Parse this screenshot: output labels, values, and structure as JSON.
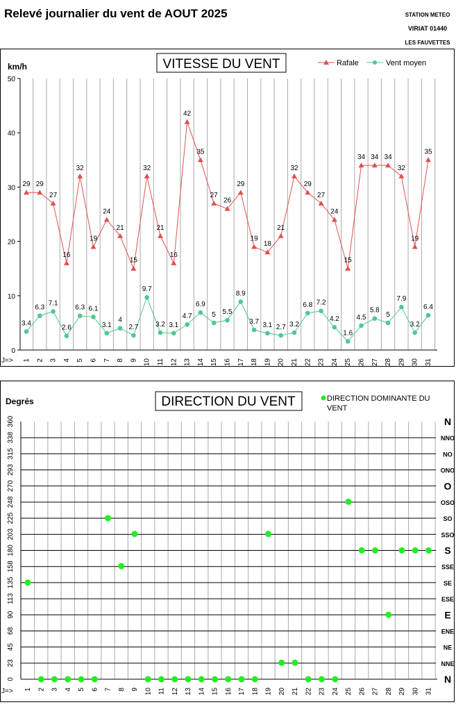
{
  "page": {
    "title": "Relevé journalier du vent de AOUT 2025",
    "logo": {
      "line1": "STATION METEO",
      "line2": "VIRIAT 01440",
      "line3": "LES FAUVETTES"
    }
  },
  "chart_data": [
    {
      "type": "line",
      "title": "VITESSE DU VENT",
      "ylabel": "km/h",
      "xlabel": "J=>",
      "ylim": [
        0,
        50
      ],
      "yticks": [
        0,
        10,
        20,
        30,
        40,
        50
      ],
      "grid": "vertical",
      "legend": "top-right",
      "categories": [
        1,
        2,
        3,
        4,
        5,
        6,
        7,
        8,
        9,
        10,
        11,
        12,
        13,
        14,
        15,
        16,
        17,
        18,
        19,
        20,
        21,
        22,
        23,
        24,
        25,
        26,
        27,
        28,
        29,
        30,
        31
      ],
      "series": [
        {
          "name": "Rafale",
          "color": "#e05050",
          "marker": "triangle",
          "values": [
            29,
            29,
            27,
            16,
            32,
            19,
            24,
            21,
            15,
            32,
            21,
            16,
            42,
            35,
            27,
            26,
            29,
            19,
            18,
            21,
            32,
            29,
            27,
            24,
            15,
            34,
            34,
            34,
            32,
            19,
            35
          ]
        },
        {
          "name": "Vent moyen",
          "color": "#50c890",
          "marker": "circle",
          "values": [
            3.4,
            6.3,
            7.1,
            2.6,
            6.3,
            6.1,
            3.1,
            4,
            2.7,
            9.7,
            3.2,
            3.1,
            4.7,
            6.9,
            5,
            5.5,
            8.9,
            3.7,
            3.1,
            2.7,
            3.2,
            6.8,
            7.2,
            4.2,
            1.6,
            4.5,
            5.8,
            5,
            7.9,
            3.2,
            6.4
          ]
        }
      ]
    },
    {
      "type": "scatter",
      "title": "DIRECTION DU VENT",
      "ylabel": "Degrés",
      "xlabel": "J=>",
      "ylim": [
        0,
        360
      ],
      "yticks": [
        0,
        23,
        45,
        68,
        90,
        113,
        135,
        158,
        180,
        203,
        225,
        248,
        270,
        293,
        315,
        338,
        360
      ],
      "compass": [
        "N",
        "NNE",
        "NE",
        "ENE",
        "E",
        "ESE",
        "SE",
        "SSE",
        "S",
        "SSO",
        "SO",
        "OSO",
        "O",
        "ONO",
        "NO",
        "NNO",
        "N"
      ],
      "legend": "top-right",
      "categories": [
        1,
        2,
        3,
        4,
        5,
        6,
        7,
        8,
        9,
        10,
        11,
        12,
        13,
        14,
        15,
        16,
        17,
        18,
        19,
        20,
        21,
        22,
        23,
        24,
        25,
        26,
        27,
        28,
        29,
        30,
        31
      ],
      "series": [
        {
          "name": "DIRECTION DOMINANTE DU VENT",
          "color": "#22ee22",
          "values": [
            135,
            0,
            0,
            0,
            0,
            0,
            225,
            158,
            203,
            0,
            0,
            0,
            0,
            0,
            0,
            0,
            0,
            0,
            203,
            23,
            23,
            0,
            0,
            0,
            248,
            180,
            180,
            90,
            180,
            180,
            180
          ]
        }
      ]
    }
  ]
}
